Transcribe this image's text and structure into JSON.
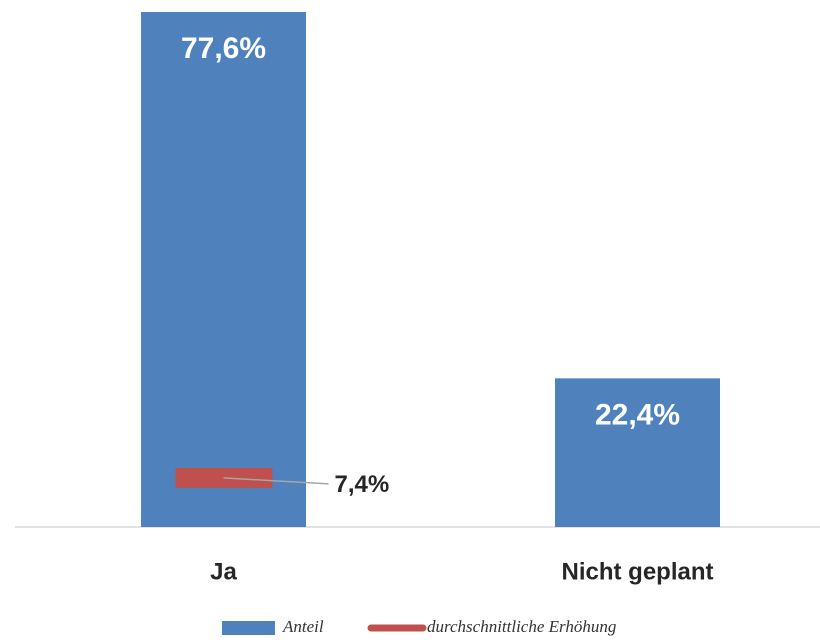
{
  "chart_data": {
    "type": "bar",
    "categories": [
      "Ja",
      "Nicht geplant"
    ],
    "series": [
      {
        "name": "Anteil",
        "color": "#4f81bd",
        "values": [
          77.6,
          22.4
        ],
        "value_labels": [
          "77,6%",
          "22,4%"
        ]
      },
      {
        "name": "durchschnittliche Erhöhung",
        "color": "#c0504d",
        "values": [
          7.4,
          null
        ],
        "value_labels": [
          "7,4%",
          null
        ]
      }
    ],
    "legend": "bottom"
  }
}
